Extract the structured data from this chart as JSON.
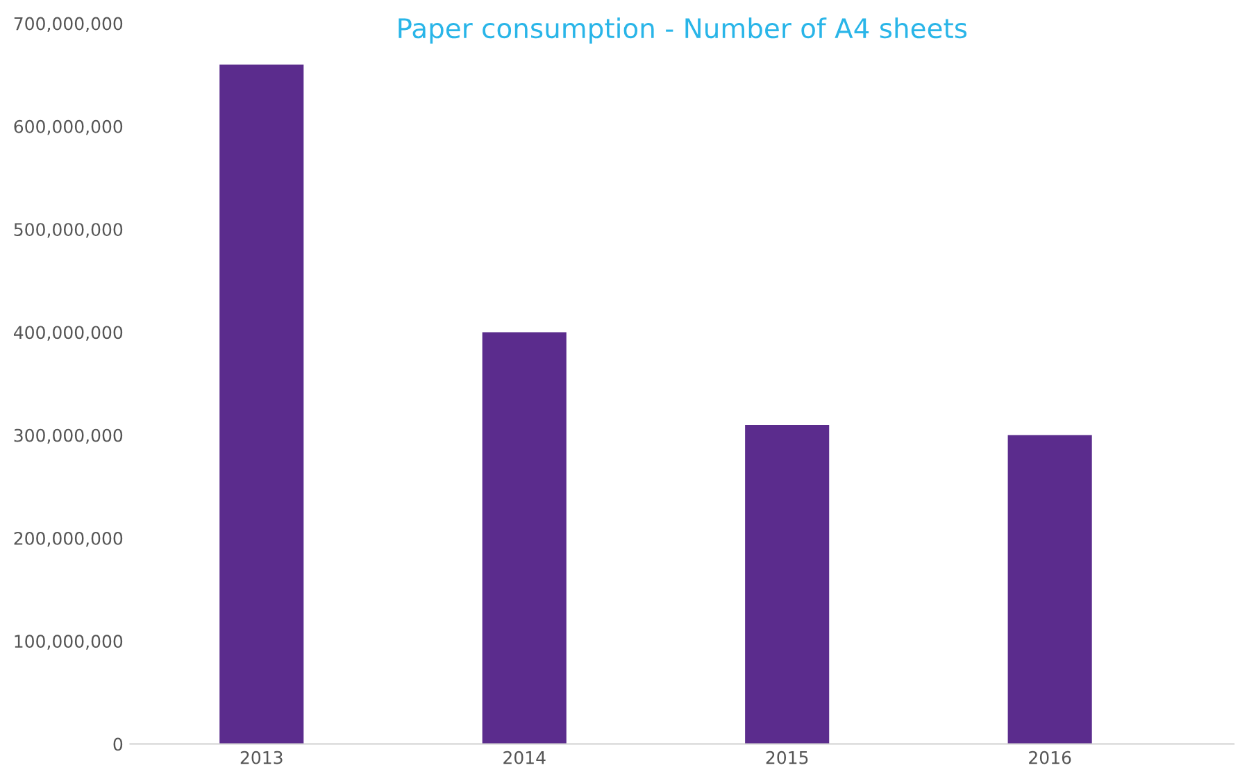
{
  "chart_data": {
    "type": "bar",
    "title": "Paper consumption - Number of A4 sheets",
    "categories": [
      "2013",
      "2014",
      "2015",
      "2016"
    ],
    "values": [
      660000000,
      400000000,
      310000000,
      300000000
    ],
    "color": "#5b2c8d",
    "ylim": [
      0,
      700000000
    ],
    "yticks": [
      0,
      {
        "value": 100000000,
        "label": "100,000,000"
      },
      {
        "value": 200000000,
        "label": "200,000,000"
      },
      {
        "value": 300000000,
        "label": "300,000,000"
      },
      {
        "value": 400000000,
        "label": "400,000,000"
      },
      {
        "value": 500000000,
        "label": "500,000,000"
      },
      {
        "value": 600000000,
        "label": "600,000,000"
      },
      {
        "value": 700000000,
        "label": "700,000,000"
      }
    ],
    "grid": false,
    "legend": false
  }
}
